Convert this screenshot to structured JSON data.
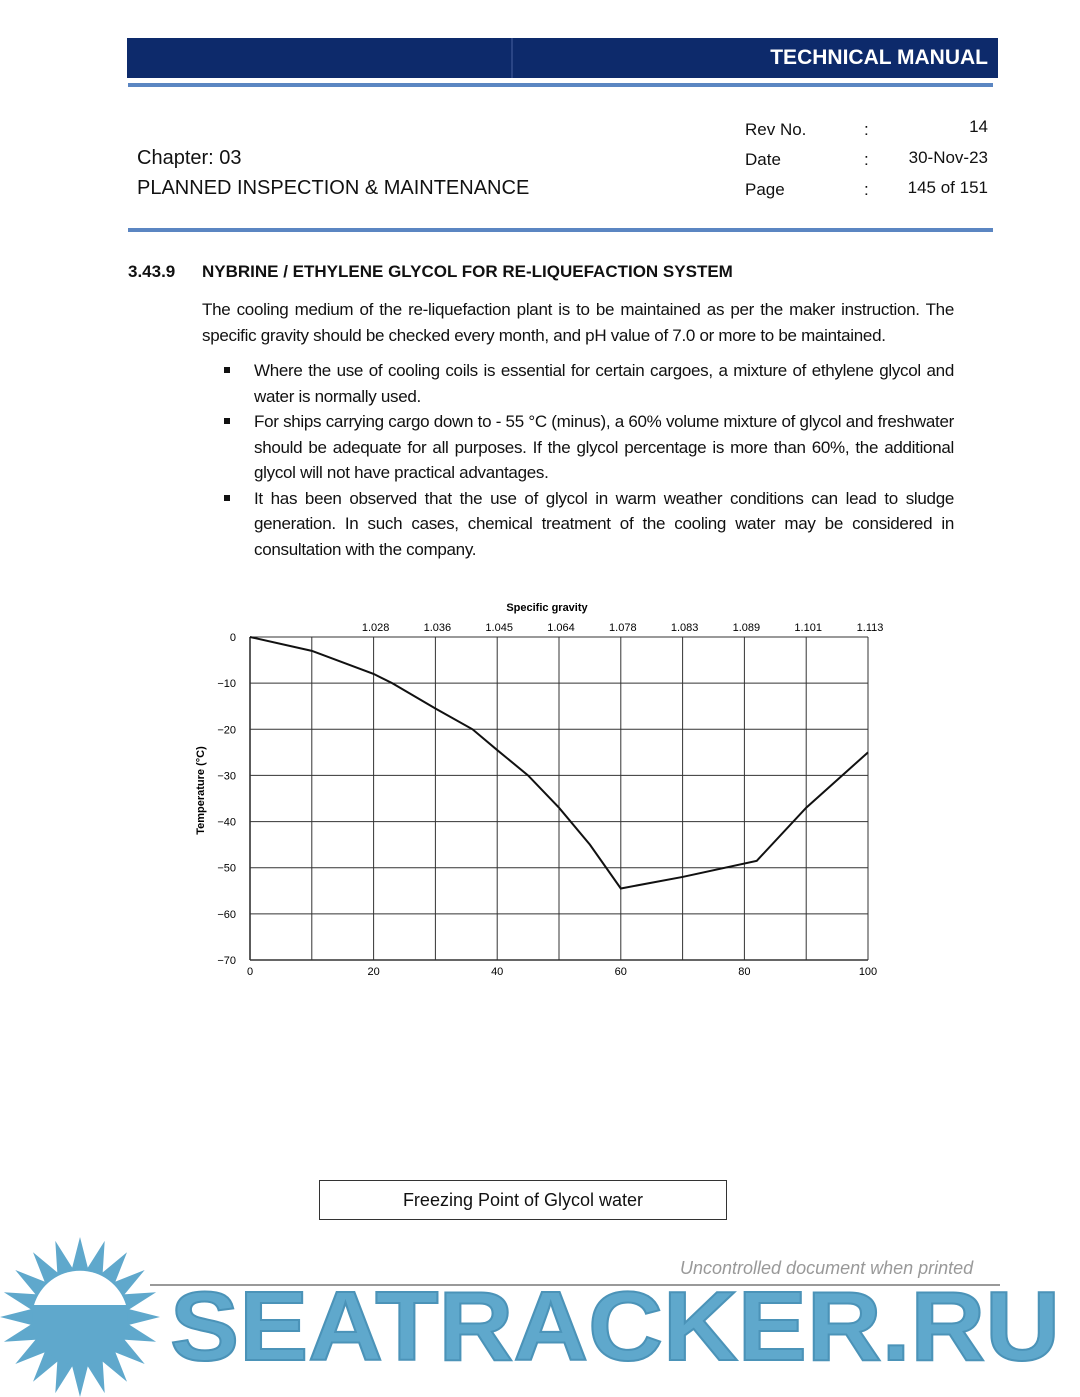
{
  "header": {
    "title": "TECHNICAL MANUAL",
    "chapter": "Chapter: 03",
    "chapter_title": "PLANNED INSPECTION & MAINTENANCE",
    "meta": [
      {
        "label": "Rev No.",
        "sep": ":",
        "value": "14"
      },
      {
        "label": "Date",
        "sep": ":",
        "value": "30-Nov-23"
      },
      {
        "label": "Page",
        "sep": ":",
        "value": "145 of 151"
      }
    ]
  },
  "section": {
    "number": "3.43.9",
    "title": "NYBRINE / ETHYLENE GLYCOL FOR RE-LIQUEFACTION SYSTEM",
    "intro": "The cooling medium of the re-liquefaction plant is to be maintained as per the maker instruction. The specific gravity should be checked every month, and pH value of 7.0 or more to be maintained.",
    "bullets": [
      "Where the use of cooling coils is essential for certain cargoes, a mixture of ethylene glycol and water is normally used.",
      "For ships carrying cargo down to - 55 °C (minus), a 60% volume mixture of glycol and freshwater should be adequate for all purposes. If the glycol percentage is more than 60%, the additional glycol will not have practical advantages.",
      "It has been observed that the use of glycol in warm weather conditions can lead to sludge generation. In such cases, chemical treatment of the cooling water may be considered in consultation with the company."
    ]
  },
  "chart_data": {
    "type": "line",
    "title": "",
    "xlabel": "",
    "ylabel": "Temperature (°C)",
    "top_axis_label": "Specific gravity",
    "xlim": [
      0,
      100
    ],
    "ylim": [
      -70,
      0
    ],
    "grid": true,
    "x_ticks": [
      0,
      20,
      40,
      60,
      80,
      100
    ],
    "y_ticks": [
      0,
      -10,
      -20,
      -30,
      -40,
      -50,
      -60,
      -70
    ],
    "top_ticks": [
      {
        "x": 20,
        "label": "1.028"
      },
      {
        "x": 30,
        "label": "1.036"
      },
      {
        "x": 40,
        "label": "1.045"
      },
      {
        "x": 50,
        "label": "1.064"
      },
      {
        "x": 60,
        "label": "1.078"
      },
      {
        "x": 70,
        "label": "1.083"
      },
      {
        "x": 80,
        "label": "1.089"
      },
      {
        "x": 90,
        "label": "1.101"
      },
      {
        "x": 100,
        "label": "1.113"
      }
    ],
    "series": [
      {
        "x": [
          0,
          10,
          20,
          23,
          30,
          36,
          40,
          45,
          50,
          55,
          60,
          70,
          82,
          90,
          100
        ],
        "y": [
          0,
          -3,
          -8,
          -10,
          -15.5,
          -20,
          -24.5,
          -30,
          -37,
          -45,
          -54.5,
          -52,
          -48.5,
          -37,
          -25
        ]
      }
    ]
  },
  "caption": "Freezing Point of Glycol water",
  "watermark": {
    "logo_text": "SEATRACKER.RU",
    "note": "Uncontrolled document when printed",
    "color": "#5fa8cc"
  }
}
